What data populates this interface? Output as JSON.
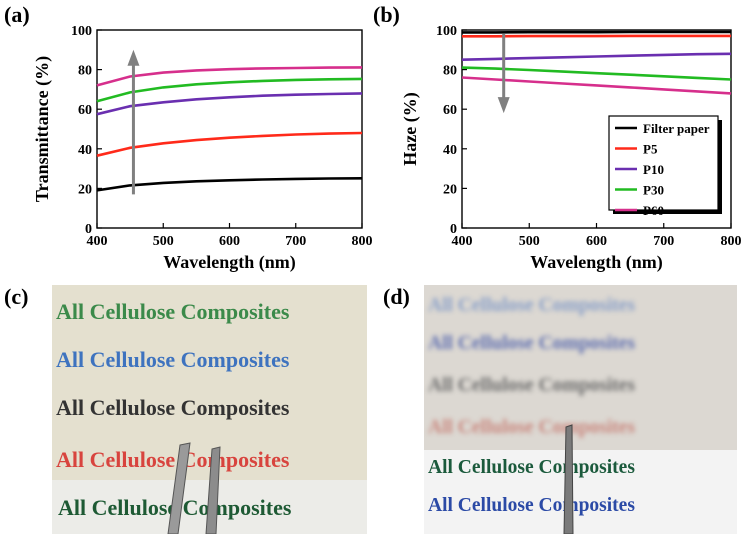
{
  "panels": {
    "a": {
      "label": "(a)"
    },
    "b": {
      "label": "(b)"
    },
    "c": {
      "label": "(c)"
    },
    "d": {
      "label": "(d)"
    }
  },
  "photos": {
    "c": {
      "lines": [
        {
          "text": "All Cellulose Composites",
          "color": "#3b8a4a"
        },
        {
          "text": "All Cellulose Composites",
          "color": "#3e73bf"
        },
        {
          "text": "All Cellulose Composites",
          "color": "#333333"
        },
        {
          "text": "All Cellulose Composites",
          "color": "#d8443e"
        },
        {
          "text": "All Cellulose Composites",
          "color": "#1e5a34"
        }
      ],
      "background": "#e4e0cf"
    },
    "d": {
      "lines": [
        {
          "text": "All Cellulose Composites",
          "color": "#8aa0c8"
        },
        {
          "text": "All Cellulose Composites",
          "color": "#5f6fb0"
        },
        {
          "text": "All Cellulose Composites",
          "color": "#6d6d6d"
        },
        {
          "text": "All Cellulose Composites",
          "color": "#c9877e"
        },
        {
          "text": "All Cellulose Composites",
          "color": "#1b5a3c"
        },
        {
          "text": "All Cellulose Composites",
          "color": "#2b4aa6"
        }
      ],
      "background": "#dcd8d2"
    }
  },
  "chart_data": [
    {
      "type": "line",
      "panel": "(a)",
      "xlabel": "Wavelength (nm)",
      "ylabel": "Transmittance (%)",
      "xlim": [
        400,
        800
      ],
      "ylim": [
        0,
        100
      ],
      "xticks": [
        400,
        500,
        600,
        700,
        800
      ],
      "yticks": [
        0,
        20,
        40,
        60,
        80,
        100
      ],
      "x": [
        400,
        450,
        500,
        550,
        600,
        650,
        700,
        750,
        800
      ],
      "series": [
        {
          "color": "#000000",
          "values": [
            19,
            21.5,
            22.8,
            23.6,
            24.1,
            24.5,
            24.8,
            25.0,
            25.1
          ]
        },
        {
          "color": "#ff2a1a",
          "values": [
            36.5,
            40.5,
            42.8,
            44.4,
            45.6,
            46.5,
            47.2,
            47.7,
            48.0
          ]
        },
        {
          "color": "#6a2fb0",
          "values": [
            57.5,
            61.5,
            63.5,
            65.0,
            66.0,
            66.8,
            67.3,
            67.7,
            68.0
          ]
        },
        {
          "color": "#22bb22",
          "values": [
            64.0,
            68.5,
            71.0,
            72.6,
            73.6,
            74.3,
            74.8,
            75.1,
            75.3
          ]
        },
        {
          "color": "#d62f8c",
          "values": [
            72.0,
            76.5,
            78.5,
            79.6,
            80.2,
            80.6,
            80.8,
            81.0,
            81.1
          ]
        }
      ],
      "arrow": {
        "direction": "up",
        "color": "#808080"
      }
    },
    {
      "type": "line",
      "panel": "(b)",
      "xlabel": "Wavelength (nm)",
      "ylabel": "Haze (%)",
      "xlim": [
        400,
        800
      ],
      "ylim": [
        0,
        100
      ],
      "xticks": [
        400,
        500,
        600,
        700,
        800
      ],
      "yticks": [
        0,
        20,
        40,
        60,
        80,
        100
      ],
      "x": [
        400,
        450,
        500,
        550,
        600,
        650,
        700,
        750,
        800
      ],
      "series": [
        {
          "name": "Filter paper",
          "color": "#000000",
          "values": [
            98.8,
            98.8,
            98.9,
            98.9,
            98.9,
            99.0,
            99.0,
            99.0,
            99.0
          ]
        },
        {
          "name": "P5",
          "color": "#ff2a1a",
          "values": [
            96.8,
            96.8,
            96.9,
            96.9,
            96.9,
            97.0,
            97.0,
            97.0,
            97.0
          ]
        },
        {
          "name": "P10",
          "color": "#6a2fb0",
          "values": [
            85.0,
            85.4,
            85.8,
            86.2,
            86.6,
            87.0,
            87.4,
            87.8,
            88.0
          ]
        },
        {
          "name": "P30",
          "color": "#22bb22",
          "values": [
            81.0,
            80.5,
            79.8,
            79.0,
            78.2,
            77.4,
            76.6,
            75.8,
            75.0
          ]
        },
        {
          "name": "P60",
          "color": "#d62f8c",
          "values": [
            76.0,
            75.0,
            74.0,
            73.0,
            72.0,
            71.0,
            70.0,
            69.0,
            68.0
          ]
        }
      ],
      "arrow": {
        "direction": "down",
        "color": "#808080"
      },
      "legend": "bottom-right"
    }
  ]
}
